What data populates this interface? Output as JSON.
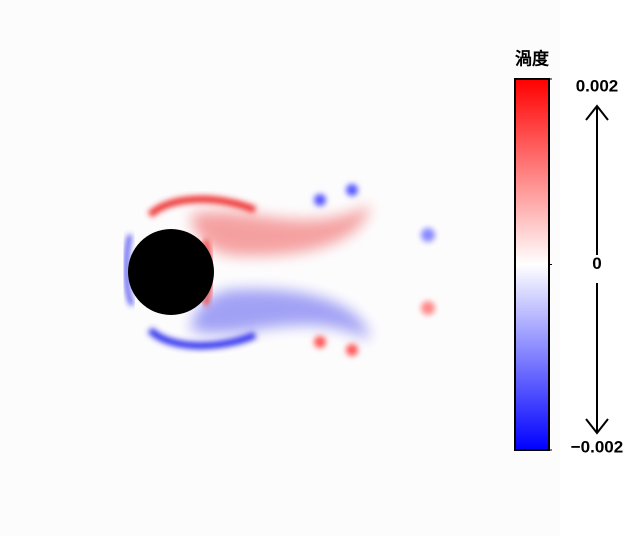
{
  "colorbar": {
    "title": "渦度",
    "lim": [
      -0.002,
      0.002
    ],
    "ticks": [
      {
        "value": 0.002,
        "label": "0.002"
      },
      0,
      {
        "value": -0.002,
        "label": "−0.002"
      }
    ],
    "colors": [
      "#0000ff",
      "#ffffff",
      "#ff0000"
    ]
  }
}
